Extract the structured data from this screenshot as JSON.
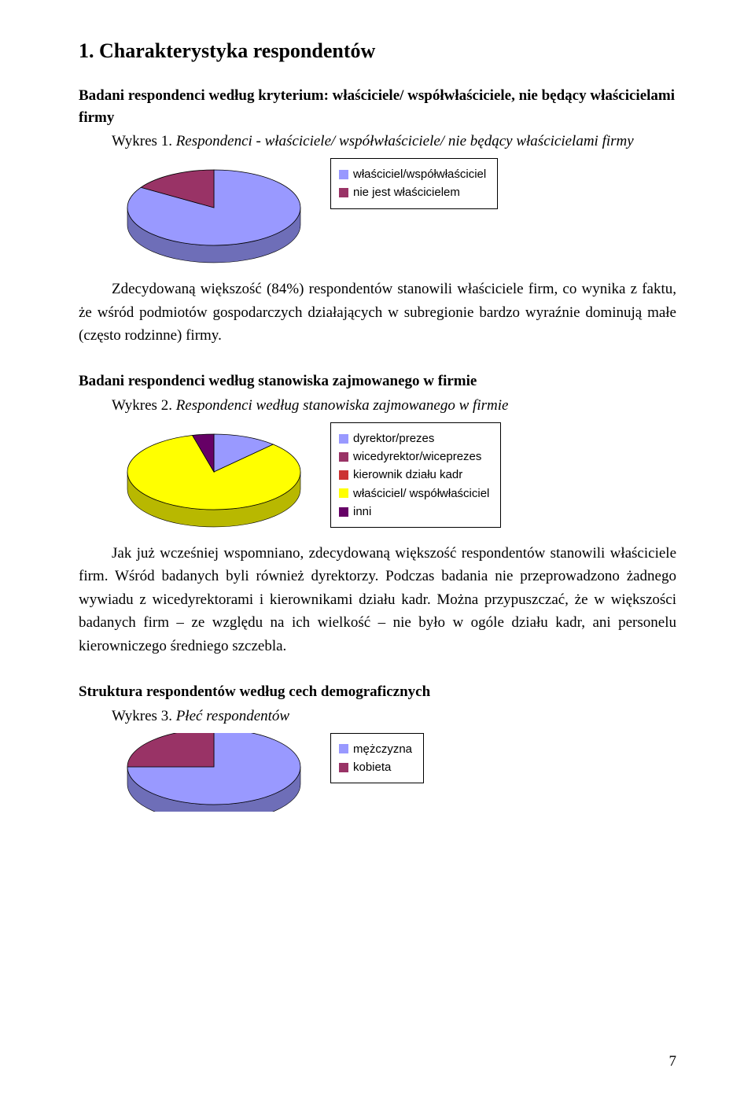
{
  "page_number": "7",
  "heading": "1. Charakterystyka respondentów",
  "section1": {
    "subhead": "Badani respondenci według kryterium: właściciele/ współwłaściciele, nie będący właścicielami firmy",
    "caption_prefix": "Wykres 1. ",
    "caption_italic": "Respondenci - właściciele/ współwłaściciele/ nie będący właścicielami firmy",
    "body": "Zdecydowaną większość (84%) respondentów stanowili właściciele firm, co wynika z faktu, że wśród podmiotów gospodarczych działających w subregionie bardzo wyraźnie dominują małe (często rodzinne) firmy."
  },
  "section2": {
    "subhead": "Badani respondenci według stanowiska zajmowanego w firmie",
    "caption_prefix": "Wykres 2. ",
    "caption_italic": "Respondenci według stanowiska zajmowanego w firmie",
    "body": "Jak już wcześniej wspomniano, zdecydowaną większość respondentów stanowili właściciele firm. Wśród badanych byli również dyrektorzy. Podczas badania nie przeprowadzono żadnego wywiadu z wicedyrektorami i kierownikami działu kadr. Można przypuszczać, że w większości badanych firm – ze względu na ich wielkość – nie było w ogóle działu kadr, ani personelu kierowniczego średniego szczebla."
  },
  "section3": {
    "subhead": "Struktura respondentów według cech demograficznych",
    "caption_prefix": "Wykres 3. ",
    "caption_italic": "Płeć respondentów"
  },
  "chart1": {
    "type": "pie3d",
    "slices": [
      {
        "label": "właściciel/współwłaściciel",
        "value": 84,
        "color": "#9999ff"
      },
      {
        "label": "nie jest właścicielem",
        "value": 16,
        "color": "#993366"
      }
    ],
    "outline": "#000000",
    "side_shade": 0.72
  },
  "chart2": {
    "type": "pie3d",
    "slices": [
      {
        "label": "dyrektor/prezes",
        "value": 12,
        "color": "#9999ff"
      },
      {
        "label": "wicedyrektor/wiceprezes",
        "value": 0,
        "color": "#993366"
      },
      {
        "label": "kierownik działu kadr",
        "value": 0,
        "color": "#cc3333"
      },
      {
        "label": "właściciel/ współwłaściciel",
        "value": 84,
        "color": "#ffff00"
      },
      {
        "label": "inni",
        "value": 4,
        "color": "#660066"
      }
    ],
    "outline": "#000000",
    "side_shade": 0.72
  },
  "chart3": {
    "type": "pie3d",
    "slices": [
      {
        "label": "mężczyzna",
        "value": 75,
        "color": "#9999ff"
      },
      {
        "label": "kobieta",
        "value": 25,
        "color": "#993366"
      }
    ],
    "outline": "#000000",
    "side_shade": 0.72
  }
}
